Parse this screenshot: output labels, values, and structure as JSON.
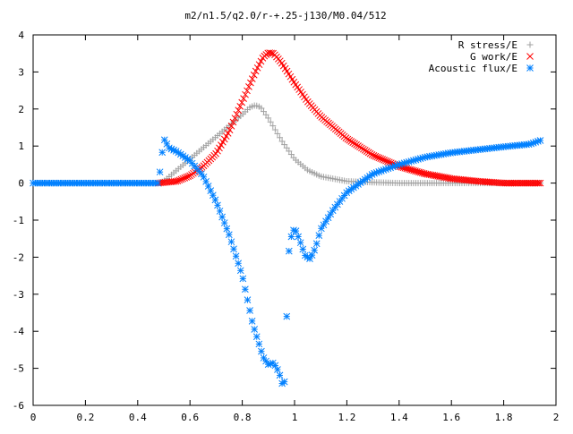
{
  "chart_data": {
    "type": "scatter",
    "title": "m2/n1.5/q2.0/r-+.25-j130/M0.04/512",
    "xlabel": "",
    "ylabel": "",
    "xlim": [
      0,
      2
    ],
    "ylim": [
      -6,
      4
    ],
    "xticks": [
      "0",
      "0.2",
      "0.4",
      "0.6",
      "0.8",
      "1",
      "1.2",
      "1.4",
      "1.6",
      "1.8",
      "2"
    ],
    "yticks": [
      "4",
      "3",
      "2",
      "1",
      "0",
      "-1",
      "-2",
      "-3",
      "-4",
      "-5",
      "-6"
    ],
    "grid": false,
    "legend_position": "top-right",
    "series": [
      {
        "name": "R stress/E",
        "marker": "+",
        "color": "#a0a0a0",
        "x": [
          0,
          0.1,
          0.2,
          0.3,
          0.4,
          0.48,
          0.5,
          0.55,
          0.6,
          0.65,
          0.7,
          0.75,
          0.8,
          0.83,
          0.85,
          0.87,
          0.9,
          0.95,
          1.0,
          1.05,
          1.1,
          1.2,
          1.3,
          1.4,
          1.5,
          1.6,
          1.7,
          1.8,
          1.9,
          1.94
        ],
        "y": [
          0,
          0,
          0,
          0,
          0,
          0,
          0.05,
          0.35,
          0.65,
          0.95,
          1.25,
          1.55,
          1.85,
          2.05,
          2.1,
          2.05,
          1.75,
          1.15,
          0.65,
          0.35,
          0.18,
          0.05,
          0.02,
          0,
          0,
          0,
          0,
          0,
          0,
          0
        ]
      },
      {
        "name": "G work/E",
        "marker": "x",
        "color": "#ff0000",
        "x": [
          0.48,
          0.55,
          0.6,
          0.65,
          0.7,
          0.75,
          0.8,
          0.85,
          0.88,
          0.9,
          0.92,
          0.95,
          1.0,
          1.05,
          1.1,
          1.2,
          1.3,
          1.4,
          1.5,
          1.6,
          1.7,
          1.8,
          1.9,
          1.94
        ],
        "y": [
          0,
          0.05,
          0.2,
          0.45,
          0.8,
          1.4,
          2.2,
          3.0,
          3.4,
          3.52,
          3.5,
          3.25,
          2.7,
          2.2,
          1.8,
          1.2,
          0.75,
          0.45,
          0.25,
          0.12,
          0.05,
          0.0,
          0.0,
          0.0
        ]
      },
      {
        "name": "Acoustic flux/E",
        "marker": "*",
        "color": "#0080ff",
        "x": [
          0,
          0.1,
          0.2,
          0.3,
          0.4,
          0.48,
          0.5,
          0.52,
          0.55,
          0.6,
          0.65,
          0.7,
          0.75,
          0.8,
          0.84,
          0.88,
          0.9,
          0.92,
          0.94,
          0.96,
          0.98,
          1.0,
          1.02,
          1.04,
          1.06,
          1.08,
          1.1,
          1.15,
          1.2,
          1.3,
          1.4,
          1.5,
          1.6,
          1.7,
          1.8,
          1.9,
          1.94
        ],
        "y": [
          0,
          0,
          0,
          0,
          0,
          0,
          1.2,
          0.95,
          0.85,
          0.6,
          0.2,
          -0.5,
          -1.4,
          -2.5,
          -3.8,
          -4.7,
          -4.9,
          -4.85,
          -5.1,
          -5.6,
          -1.6,
          -1.2,
          -1.55,
          -1.95,
          -2.05,
          -1.75,
          -1.25,
          -0.7,
          -0.25,
          0.25,
          0.5,
          0.7,
          0.82,
          0.9,
          0.98,
          1.05,
          1.15
        ]
      }
    ]
  }
}
